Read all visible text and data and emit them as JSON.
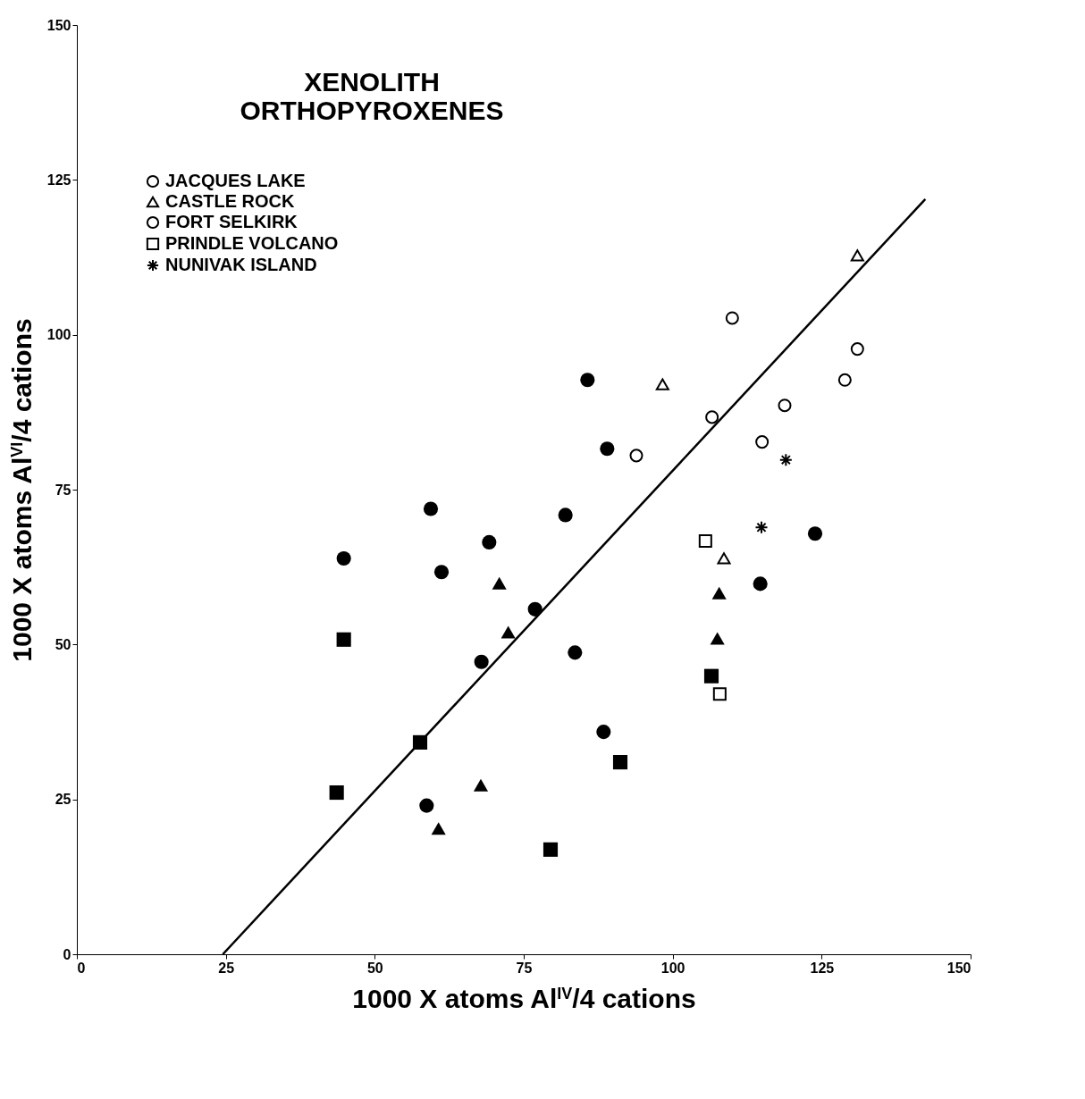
{
  "chart_data": {
    "type": "scatter",
    "title": [
      "XENOLITH",
      "ORTHOPYROXENES"
    ],
    "xlabel": "1000 X atoms Al$^{IV}$/4 cations",
    "ylabel": "1000 X atoms Al$^{VI}$/4 cations",
    "xlim": [
      0,
      150
    ],
    "ylim": [
      0,
      150
    ],
    "xticks": [
      0,
      25,
      50,
      75,
      100,
      125,
      150
    ],
    "yticks": [
      0,
      25,
      50,
      75,
      100,
      125,
      150
    ],
    "grid": false,
    "legend": "top left",
    "series": [
      {
        "name": "JACQUES LAKE",
        "color": "#000000",
        "marker": "circle",
        "x": [
          110,
          106.6,
          93.9,
          118.8,
          131
        ],
        "values": [
          102.7,
          86.7,
          80.5,
          88.6,
          97.7
        ]
      },
      {
        "name": "CASTLE ROCK",
        "color": "#000000",
        "marker": "triangle",
        "x": [
          98.3,
          131,
          108.6
        ],
        "values": [
          92,
          112.8,
          63.9
        ]
      },
      {
        "name": "FORT SELKIRK",
        "color": "#000000",
        "marker": "circle",
        "x": [
          115,
          128.9
        ],
        "values": [
          82.7,
          92.7
        ]
      },
      {
        "name": "PRINDLE VOLCANO",
        "color": "#000000",
        "marker": "square",
        "x": [
          105.5,
          107.9
        ],
        "values": [
          66.7,
          42
        ]
      },
      {
        "name": "NUNIVAK ISLAND",
        "color": "#000000",
        "marker": "cross",
        "x": [
          119,
          114.9
        ],
        "values": [
          79.8,
          68.9
        ]
      },
      {
        "color": "#000000",
        "marker": "circle",
        "x": [
          85.7,
          89,
          59.4,
          44.8,
          61.2,
          69.2,
          82,
          76.9,
          67.9,
          83.6,
          88.4,
          58.7,
          114.7,
          123.9
        ],
        "values": [
          92.7,
          81.6,
          71.9,
          63.9,
          61.7,
          66.5,
          70.9,
          55.7,
          47.2,
          48.7,
          35.9,
          24,
          59.8,
          67.9
        ]
      },
      {
        "color": "#000000",
        "marker": "square",
        "x": [
          44.8,
          43.6,
          57.6,
          79.5,
          91.2,
          106.5
        ],
        "values": [
          50.8,
          26.1,
          34.2,
          16.9,
          31,
          44.9
        ]
      },
      {
        "color": "#000000",
        "marker": "triangle",
        "x": [
          70.9,
          72.4,
          107.8,
          107.5,
          67.8,
          60.7
        ],
        "values": [
          59.9,
          52,
          58.3,
          51,
          27.3,
          20.3
        ]
      },
      {
        "type": "line",
        "color": "#000000",
        "marker": "none",
        "x": [
          24.5,
          142.4
        ],
        "values": [
          0,
          121.9
        ]
      }
    ]
  }
}
